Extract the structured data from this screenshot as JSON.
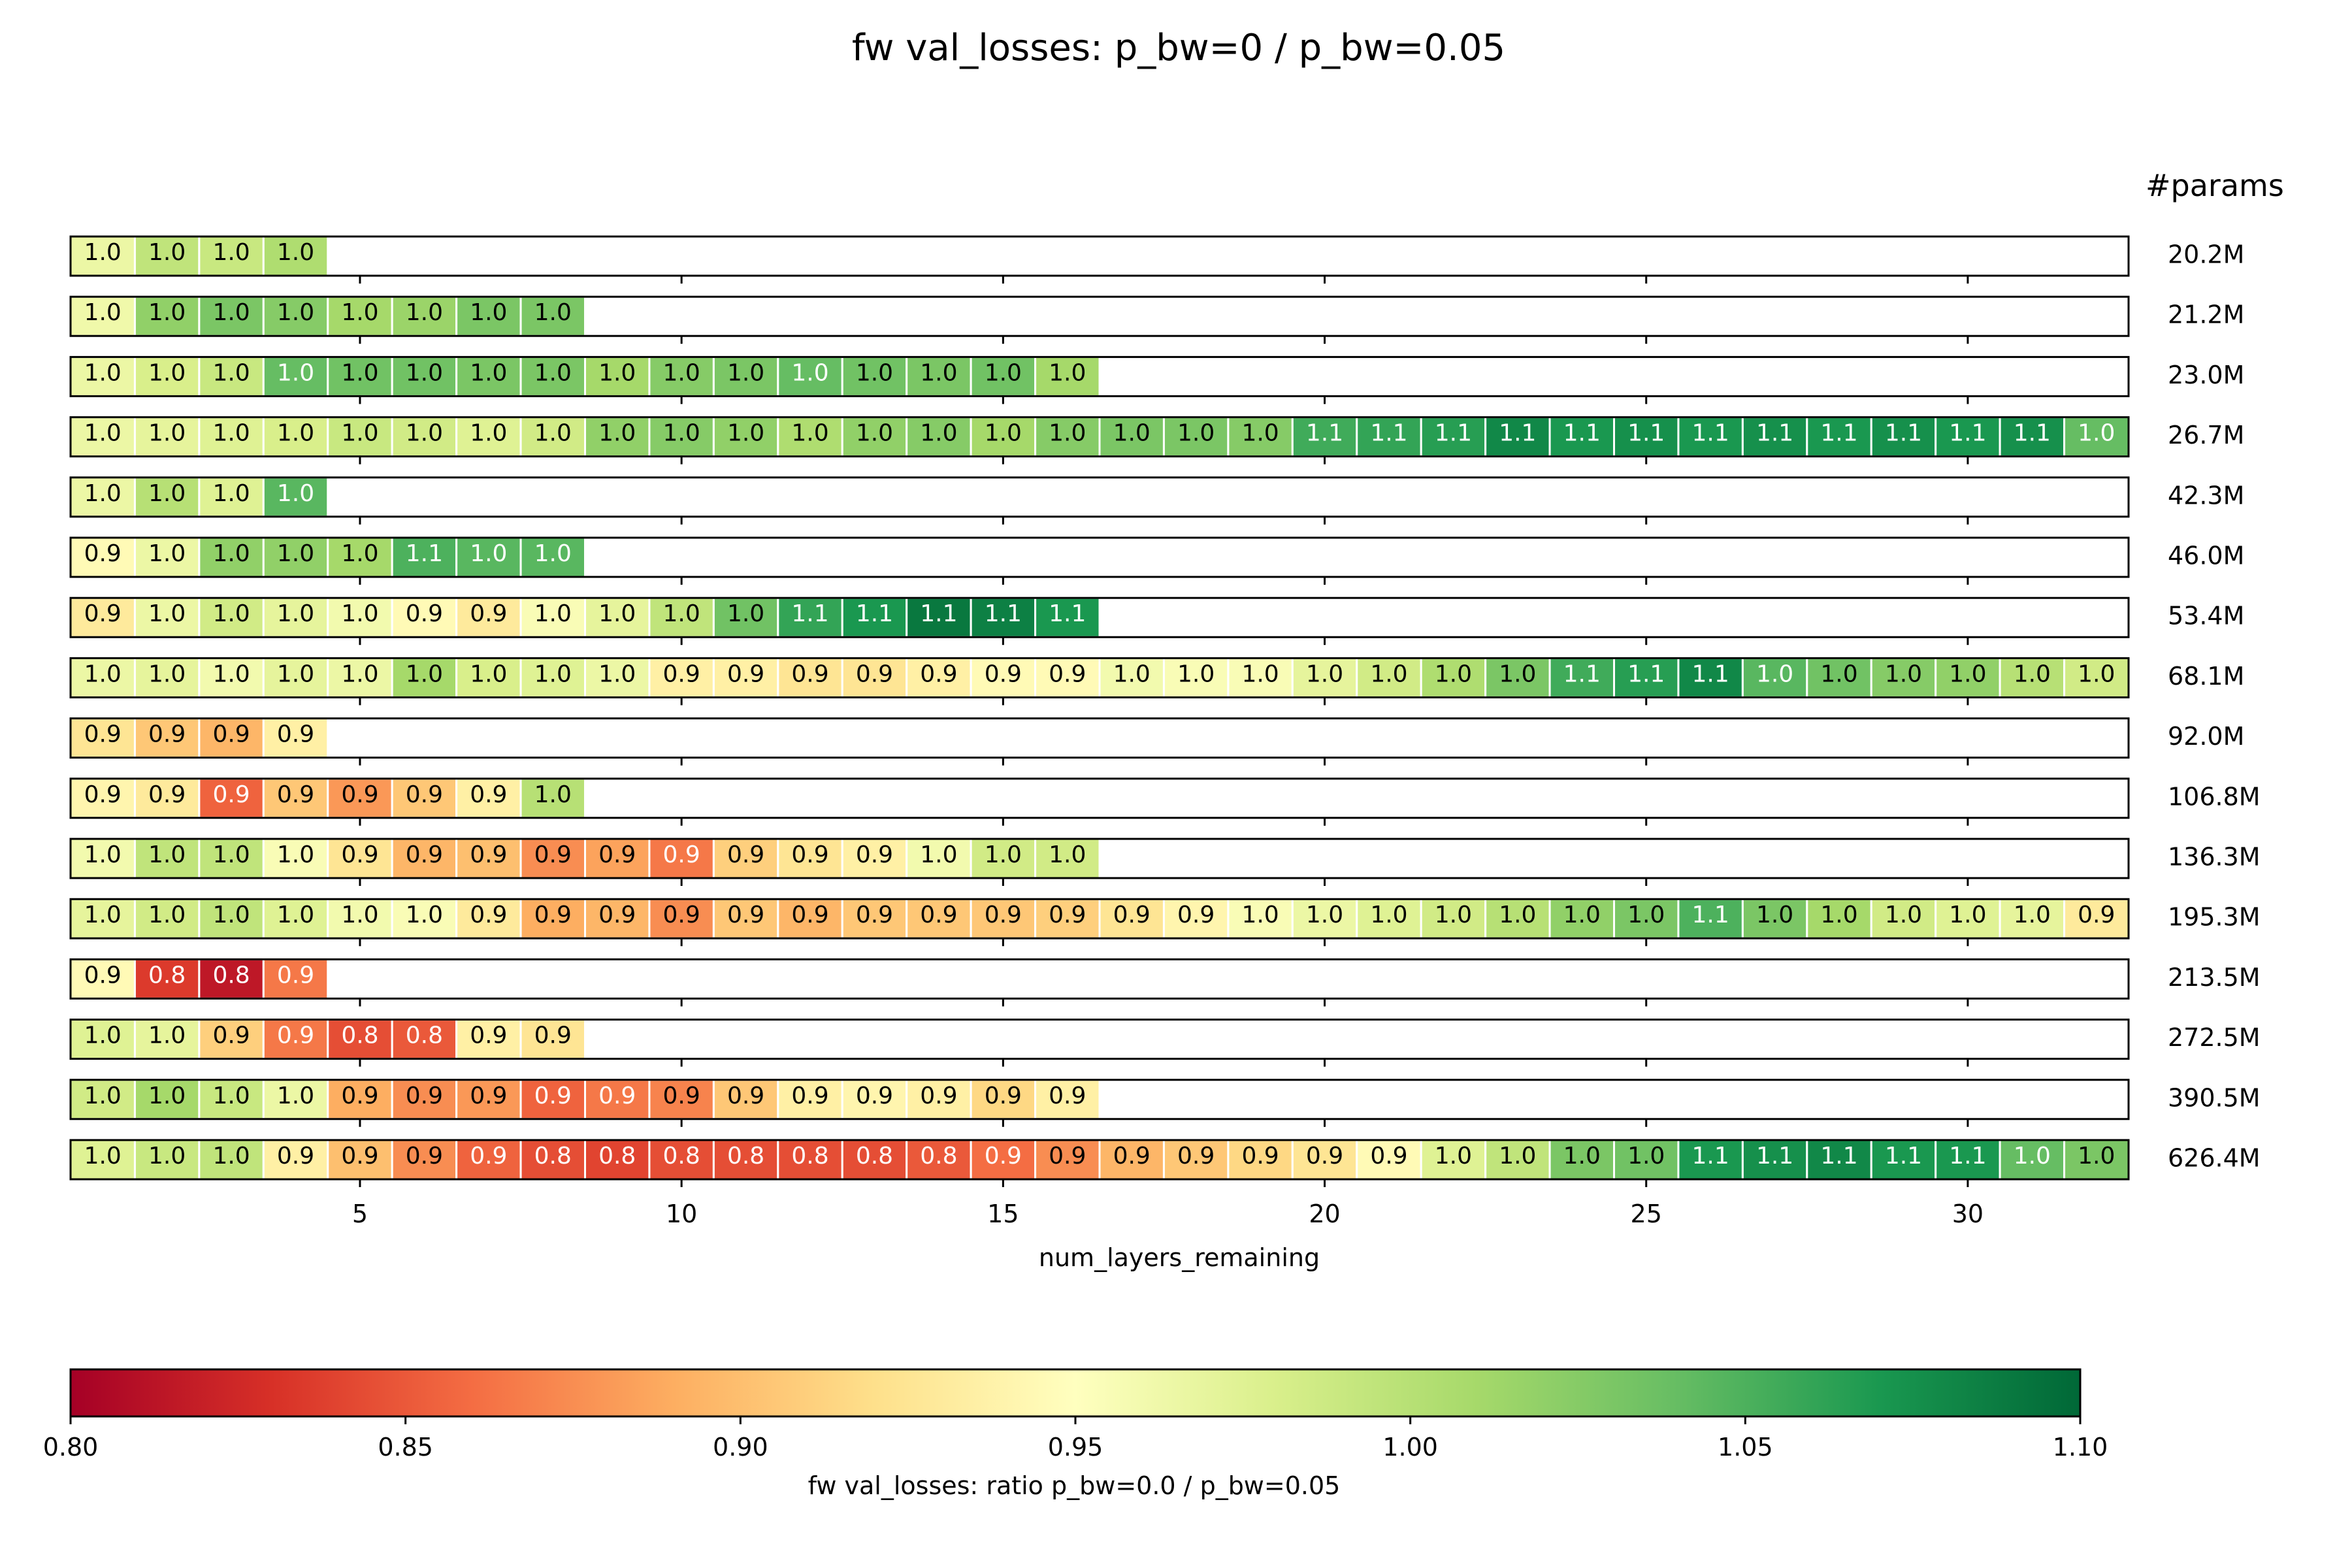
{
  "chart_data": {
    "type": "heatmap",
    "title": "fw val_losses: p_bw=0 / p_bw=0.05",
    "xlabel": "num_layers_remaining",
    "x_ticks": [
      5,
      10,
      15,
      20,
      25,
      30
    ],
    "x_range": [
      1,
      32
    ],
    "params_header": "#params",
    "colorbar": {
      "label": "fw val_losses: ratio p_bw=0.0 / p_bw=0.05",
      "range": [
        0.8,
        1.1
      ],
      "ticks": [
        "0.80",
        "0.85",
        "0.90",
        "0.95",
        "1.00",
        "1.05",
        "1.10"
      ],
      "colormap": "RdYlGn"
    },
    "rows": [
      {
        "params": "20.2M",
        "values": [
          0.965,
          0.995,
          0.99,
          1.005
        ]
      },
      {
        "params": "21.2M",
        "values": [
          0.962,
          1.02,
          1.03,
          1.025,
          1.01,
          1.015,
          1.03,
          1.03
        ]
      },
      {
        "params": "23.0M",
        "values": [
          0.965,
          0.98,
          0.99,
          1.04,
          1.035,
          1.035,
          1.03,
          1.03,
          1.01,
          1.025,
          1.03,
          1.04,
          1.035,
          1.03,
          1.035,
          1.01
        ]
      },
      {
        "params": "26.7M",
        "values": [
          0.965,
          0.97,
          0.975,
          0.98,
          0.99,
          0.985,
          0.975,
          0.985,
          1.02,
          1.025,
          1.02,
          1.005,
          1.02,
          1.025,
          1.01,
          1.025,
          1.03,
          1.03,
          1.025,
          1.055,
          1.06,
          1.065,
          1.08,
          1.07,
          1.075,
          1.07,
          1.075,
          1.07,
          1.075,
          1.07,
          1.075,
          1.04
        ]
      },
      {
        "params": "42.3M",
        "values": [
          0.965,
          1.0,
          0.975,
          1.045
        ]
      },
      {
        "params": "46.0M",
        "values": [
          0.945,
          0.965,
          1.02,
          1.02,
          1.01,
          1.05,
          1.045,
          1.045
        ]
      },
      {
        "params": "53.4M",
        "values": [
          0.93,
          0.965,
          0.985,
          0.97,
          0.96,
          0.945,
          0.93,
          0.955,
          0.97,
          0.995,
          1.035,
          1.06,
          1.07,
          1.09,
          1.085,
          1.07
        ]
      },
      {
        "params": "68.1M",
        "values": [
          0.965,
          0.97,
          0.96,
          0.97,
          0.965,
          1.01,
          0.98,
          0.975,
          0.965,
          0.935,
          0.935,
          0.925,
          0.925,
          0.935,
          0.945,
          0.945,
          0.96,
          0.955,
          0.955,
          0.97,
          0.985,
          1.005,
          1.03,
          1.055,
          1.065,
          1.08,
          1.045,
          1.035,
          1.025,
          1.02,
          1.0,
          0.985
        ]
      },
      {
        "params": "92.0M",
        "values": [
          0.925,
          0.905,
          0.895,
          0.935
        ]
      },
      {
        "params": "106.8M",
        "values": [
          0.94,
          0.93,
          0.855,
          0.905,
          0.88,
          0.905,
          0.935,
          1.0
        ]
      },
      {
        "params": "136.3M",
        "values": [
          0.96,
          0.995,
          0.995,
          0.955,
          0.925,
          0.895,
          0.9,
          0.875,
          0.885,
          0.865,
          0.91,
          0.925,
          0.935,
          0.96,
          0.985,
          0.985
        ]
      },
      {
        "params": "195.3M",
        "values": [
          0.97,
          0.985,
          0.995,
          0.975,
          0.96,
          0.955,
          0.93,
          0.89,
          0.895,
          0.875,
          0.905,
          0.895,
          0.905,
          0.905,
          0.905,
          0.91,
          0.925,
          0.94,
          0.955,
          0.965,
          0.975,
          0.985,
          1.0,
          1.02,
          1.03,
          1.05,
          1.03,
          1.01,
          0.985,
          0.975,
          0.97,
          0.93
        ]
      },
      {
        "params": "213.5M",
        "values": [
          0.945,
          0.835,
          0.815,
          0.865
        ]
      },
      {
        "params": "272.5M",
        "values": [
          0.975,
          0.97,
          0.91,
          0.865,
          0.845,
          0.85,
          0.935,
          0.925
        ]
      },
      {
        "params": "390.5M",
        "values": [
          0.985,
          1.01,
          0.99,
          0.965,
          0.89,
          0.875,
          0.88,
          0.855,
          0.865,
          0.87,
          0.905,
          0.935,
          0.94,
          0.935,
          0.915,
          0.935
        ]
      },
      {
        "params": "626.4M",
        "values": [
          0.975,
          0.99,
          0.995,
          0.935,
          0.9,
          0.875,
          0.855,
          0.845,
          0.84,
          0.845,
          0.845,
          0.845,
          0.845,
          0.85,
          0.86,
          0.875,
          0.895,
          0.905,
          0.915,
          0.925,
          0.945,
          0.975,
          0.995,
          1.03,
          1.035,
          1.07,
          1.075,
          1.08,
          1.07,
          1.07,
          1.04,
          1.03
        ]
      }
    ]
  }
}
